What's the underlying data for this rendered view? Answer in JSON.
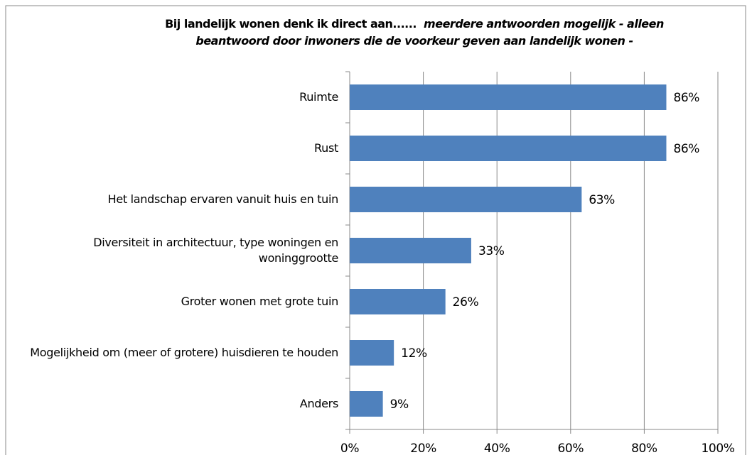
{
  "chart_data": {
    "type": "bar",
    "orientation": "horizontal",
    "title": "Bij landelijk wonen denk ik direct aan......",
    "subtitle": "meerdere antwoorden mogelijk - alleen beantwoord door inwoners die de voorkeur geven aan landelijk wonen -",
    "categories": [
      "Ruimte",
      "Rust",
      "Het landschap ervaren vanuit huis en tuin",
      "Diversiteit in architectuur, type woningen en woninggrootte",
      "Groter wonen met grote tuin",
      "Mogelijkheid om (meer of grotere) huisdieren te houden",
      "Anders"
    ],
    "values": [
      86,
      86,
      63,
      33,
      26,
      12,
      9
    ],
    "value_labels": [
      "86%",
      "86%",
      "63%",
      "33%",
      "26%",
      "12%",
      "9%"
    ],
    "color": "#4f81bd",
    "xlim": [
      0,
      100
    ],
    "xticks": [
      {
        "value": 0,
        "label": "0%"
      },
      {
        "value": 20,
        "label": "20%"
      },
      {
        "value": 40,
        "label": "40%"
      },
      {
        "value": 60,
        "label": "60%"
      },
      {
        "value": 80,
        "label": "80%"
      },
      {
        "value": 100,
        "label": "100%"
      }
    ],
    "grid": true
  }
}
